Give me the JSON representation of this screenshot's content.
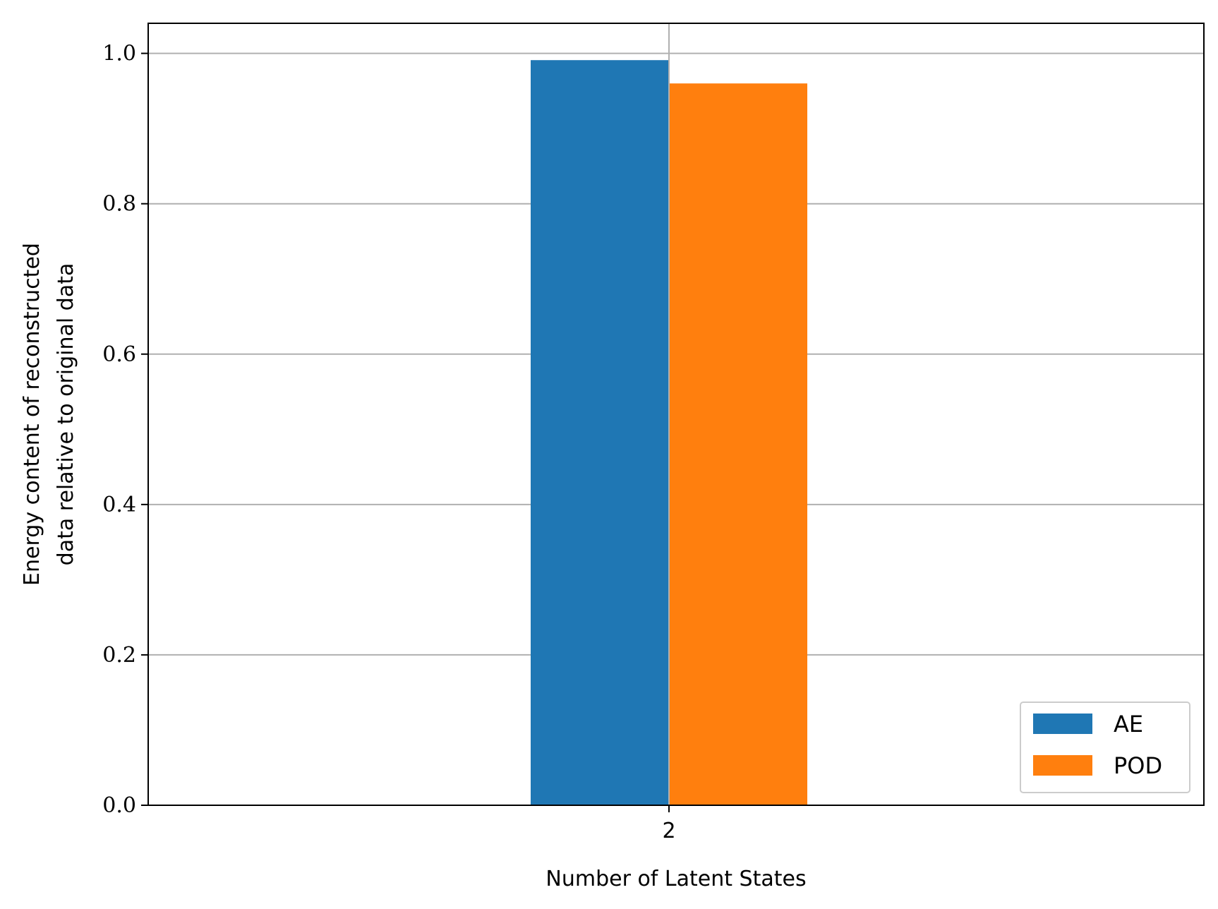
{
  "chart_data": {
    "type": "bar",
    "categories": [
      "2"
    ],
    "series": [
      {
        "name": "AE",
        "values": [
          0.991
        ],
        "color": "#1f77b4"
      },
      {
        "name": "POD",
        "values": [
          0.96
        ],
        "color": "#ff7f0e"
      }
    ],
    "xlabel": "Number of Latent States",
    "ylabel": [
      "Energy content of reconstructed",
      "data relative to original data"
    ],
    "ylim": [
      0,
      1.04
    ],
    "yticks": [
      0.0,
      0.2,
      0.4,
      0.6,
      0.8,
      1.0
    ],
    "ytick_labels": [
      "0.0",
      "0.2",
      "0.4",
      "0.6",
      "0.8",
      "1.0"
    ],
    "grid": true,
    "legend_position": "lower-right"
  }
}
